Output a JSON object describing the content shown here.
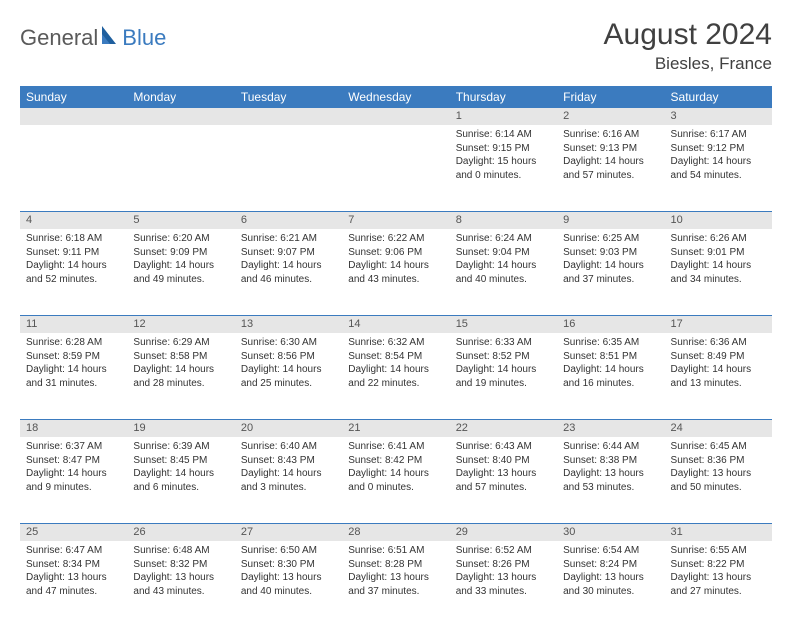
{
  "logo": {
    "left": "General",
    "right": "Blue"
  },
  "title": "August 2024",
  "location": "Biesles, France",
  "colors": {
    "header_bg": "#3b7bbf",
    "header_text": "#ffffff",
    "band_bg": "#e6e6e6",
    "row_border": "#3b7bbf",
    "text": "#333333",
    "title_text": "#404040",
    "logo_gray": "#5a5a5a",
    "logo_blue": "#3b7bbf"
  },
  "weekdays": [
    "Sunday",
    "Monday",
    "Tuesday",
    "Wednesday",
    "Thursday",
    "Friday",
    "Saturday"
  ],
  "weeks": [
    [
      {
        "day": "",
        "sunrise": "",
        "sunset": "",
        "daylight": ""
      },
      {
        "day": "",
        "sunrise": "",
        "sunset": "",
        "daylight": ""
      },
      {
        "day": "",
        "sunrise": "",
        "sunset": "",
        "daylight": ""
      },
      {
        "day": "",
        "sunrise": "",
        "sunset": "",
        "daylight": ""
      },
      {
        "day": "1",
        "sunrise": "Sunrise: 6:14 AM",
        "sunset": "Sunset: 9:15 PM",
        "daylight": "Daylight: 15 hours and 0 minutes."
      },
      {
        "day": "2",
        "sunrise": "Sunrise: 6:16 AM",
        "sunset": "Sunset: 9:13 PM",
        "daylight": "Daylight: 14 hours and 57 minutes."
      },
      {
        "day": "3",
        "sunrise": "Sunrise: 6:17 AM",
        "sunset": "Sunset: 9:12 PM",
        "daylight": "Daylight: 14 hours and 54 minutes."
      }
    ],
    [
      {
        "day": "4",
        "sunrise": "Sunrise: 6:18 AM",
        "sunset": "Sunset: 9:11 PM",
        "daylight": "Daylight: 14 hours and 52 minutes."
      },
      {
        "day": "5",
        "sunrise": "Sunrise: 6:20 AM",
        "sunset": "Sunset: 9:09 PM",
        "daylight": "Daylight: 14 hours and 49 minutes."
      },
      {
        "day": "6",
        "sunrise": "Sunrise: 6:21 AM",
        "sunset": "Sunset: 9:07 PM",
        "daylight": "Daylight: 14 hours and 46 minutes."
      },
      {
        "day": "7",
        "sunrise": "Sunrise: 6:22 AM",
        "sunset": "Sunset: 9:06 PM",
        "daylight": "Daylight: 14 hours and 43 minutes."
      },
      {
        "day": "8",
        "sunrise": "Sunrise: 6:24 AM",
        "sunset": "Sunset: 9:04 PM",
        "daylight": "Daylight: 14 hours and 40 minutes."
      },
      {
        "day": "9",
        "sunrise": "Sunrise: 6:25 AM",
        "sunset": "Sunset: 9:03 PM",
        "daylight": "Daylight: 14 hours and 37 minutes."
      },
      {
        "day": "10",
        "sunrise": "Sunrise: 6:26 AM",
        "sunset": "Sunset: 9:01 PM",
        "daylight": "Daylight: 14 hours and 34 minutes."
      }
    ],
    [
      {
        "day": "11",
        "sunrise": "Sunrise: 6:28 AM",
        "sunset": "Sunset: 8:59 PM",
        "daylight": "Daylight: 14 hours and 31 minutes."
      },
      {
        "day": "12",
        "sunrise": "Sunrise: 6:29 AM",
        "sunset": "Sunset: 8:58 PM",
        "daylight": "Daylight: 14 hours and 28 minutes."
      },
      {
        "day": "13",
        "sunrise": "Sunrise: 6:30 AM",
        "sunset": "Sunset: 8:56 PM",
        "daylight": "Daylight: 14 hours and 25 minutes."
      },
      {
        "day": "14",
        "sunrise": "Sunrise: 6:32 AM",
        "sunset": "Sunset: 8:54 PM",
        "daylight": "Daylight: 14 hours and 22 minutes."
      },
      {
        "day": "15",
        "sunrise": "Sunrise: 6:33 AM",
        "sunset": "Sunset: 8:52 PM",
        "daylight": "Daylight: 14 hours and 19 minutes."
      },
      {
        "day": "16",
        "sunrise": "Sunrise: 6:35 AM",
        "sunset": "Sunset: 8:51 PM",
        "daylight": "Daylight: 14 hours and 16 minutes."
      },
      {
        "day": "17",
        "sunrise": "Sunrise: 6:36 AM",
        "sunset": "Sunset: 8:49 PM",
        "daylight": "Daylight: 14 hours and 13 minutes."
      }
    ],
    [
      {
        "day": "18",
        "sunrise": "Sunrise: 6:37 AM",
        "sunset": "Sunset: 8:47 PM",
        "daylight": "Daylight: 14 hours and 9 minutes."
      },
      {
        "day": "19",
        "sunrise": "Sunrise: 6:39 AM",
        "sunset": "Sunset: 8:45 PM",
        "daylight": "Daylight: 14 hours and 6 minutes."
      },
      {
        "day": "20",
        "sunrise": "Sunrise: 6:40 AM",
        "sunset": "Sunset: 8:43 PM",
        "daylight": "Daylight: 14 hours and 3 minutes."
      },
      {
        "day": "21",
        "sunrise": "Sunrise: 6:41 AM",
        "sunset": "Sunset: 8:42 PM",
        "daylight": "Daylight: 14 hours and 0 minutes."
      },
      {
        "day": "22",
        "sunrise": "Sunrise: 6:43 AM",
        "sunset": "Sunset: 8:40 PM",
        "daylight": "Daylight: 13 hours and 57 minutes."
      },
      {
        "day": "23",
        "sunrise": "Sunrise: 6:44 AM",
        "sunset": "Sunset: 8:38 PM",
        "daylight": "Daylight: 13 hours and 53 minutes."
      },
      {
        "day": "24",
        "sunrise": "Sunrise: 6:45 AM",
        "sunset": "Sunset: 8:36 PM",
        "daylight": "Daylight: 13 hours and 50 minutes."
      }
    ],
    [
      {
        "day": "25",
        "sunrise": "Sunrise: 6:47 AM",
        "sunset": "Sunset: 8:34 PM",
        "daylight": "Daylight: 13 hours and 47 minutes."
      },
      {
        "day": "26",
        "sunrise": "Sunrise: 6:48 AM",
        "sunset": "Sunset: 8:32 PM",
        "daylight": "Daylight: 13 hours and 43 minutes."
      },
      {
        "day": "27",
        "sunrise": "Sunrise: 6:50 AM",
        "sunset": "Sunset: 8:30 PM",
        "daylight": "Daylight: 13 hours and 40 minutes."
      },
      {
        "day": "28",
        "sunrise": "Sunrise: 6:51 AM",
        "sunset": "Sunset: 8:28 PM",
        "daylight": "Daylight: 13 hours and 37 minutes."
      },
      {
        "day": "29",
        "sunrise": "Sunrise: 6:52 AM",
        "sunset": "Sunset: 8:26 PM",
        "daylight": "Daylight: 13 hours and 33 minutes."
      },
      {
        "day": "30",
        "sunrise": "Sunrise: 6:54 AM",
        "sunset": "Sunset: 8:24 PM",
        "daylight": "Daylight: 13 hours and 30 minutes."
      },
      {
        "day": "31",
        "sunrise": "Sunrise: 6:55 AM",
        "sunset": "Sunset: 8:22 PM",
        "daylight": "Daylight: 13 hours and 27 minutes."
      }
    ]
  ]
}
